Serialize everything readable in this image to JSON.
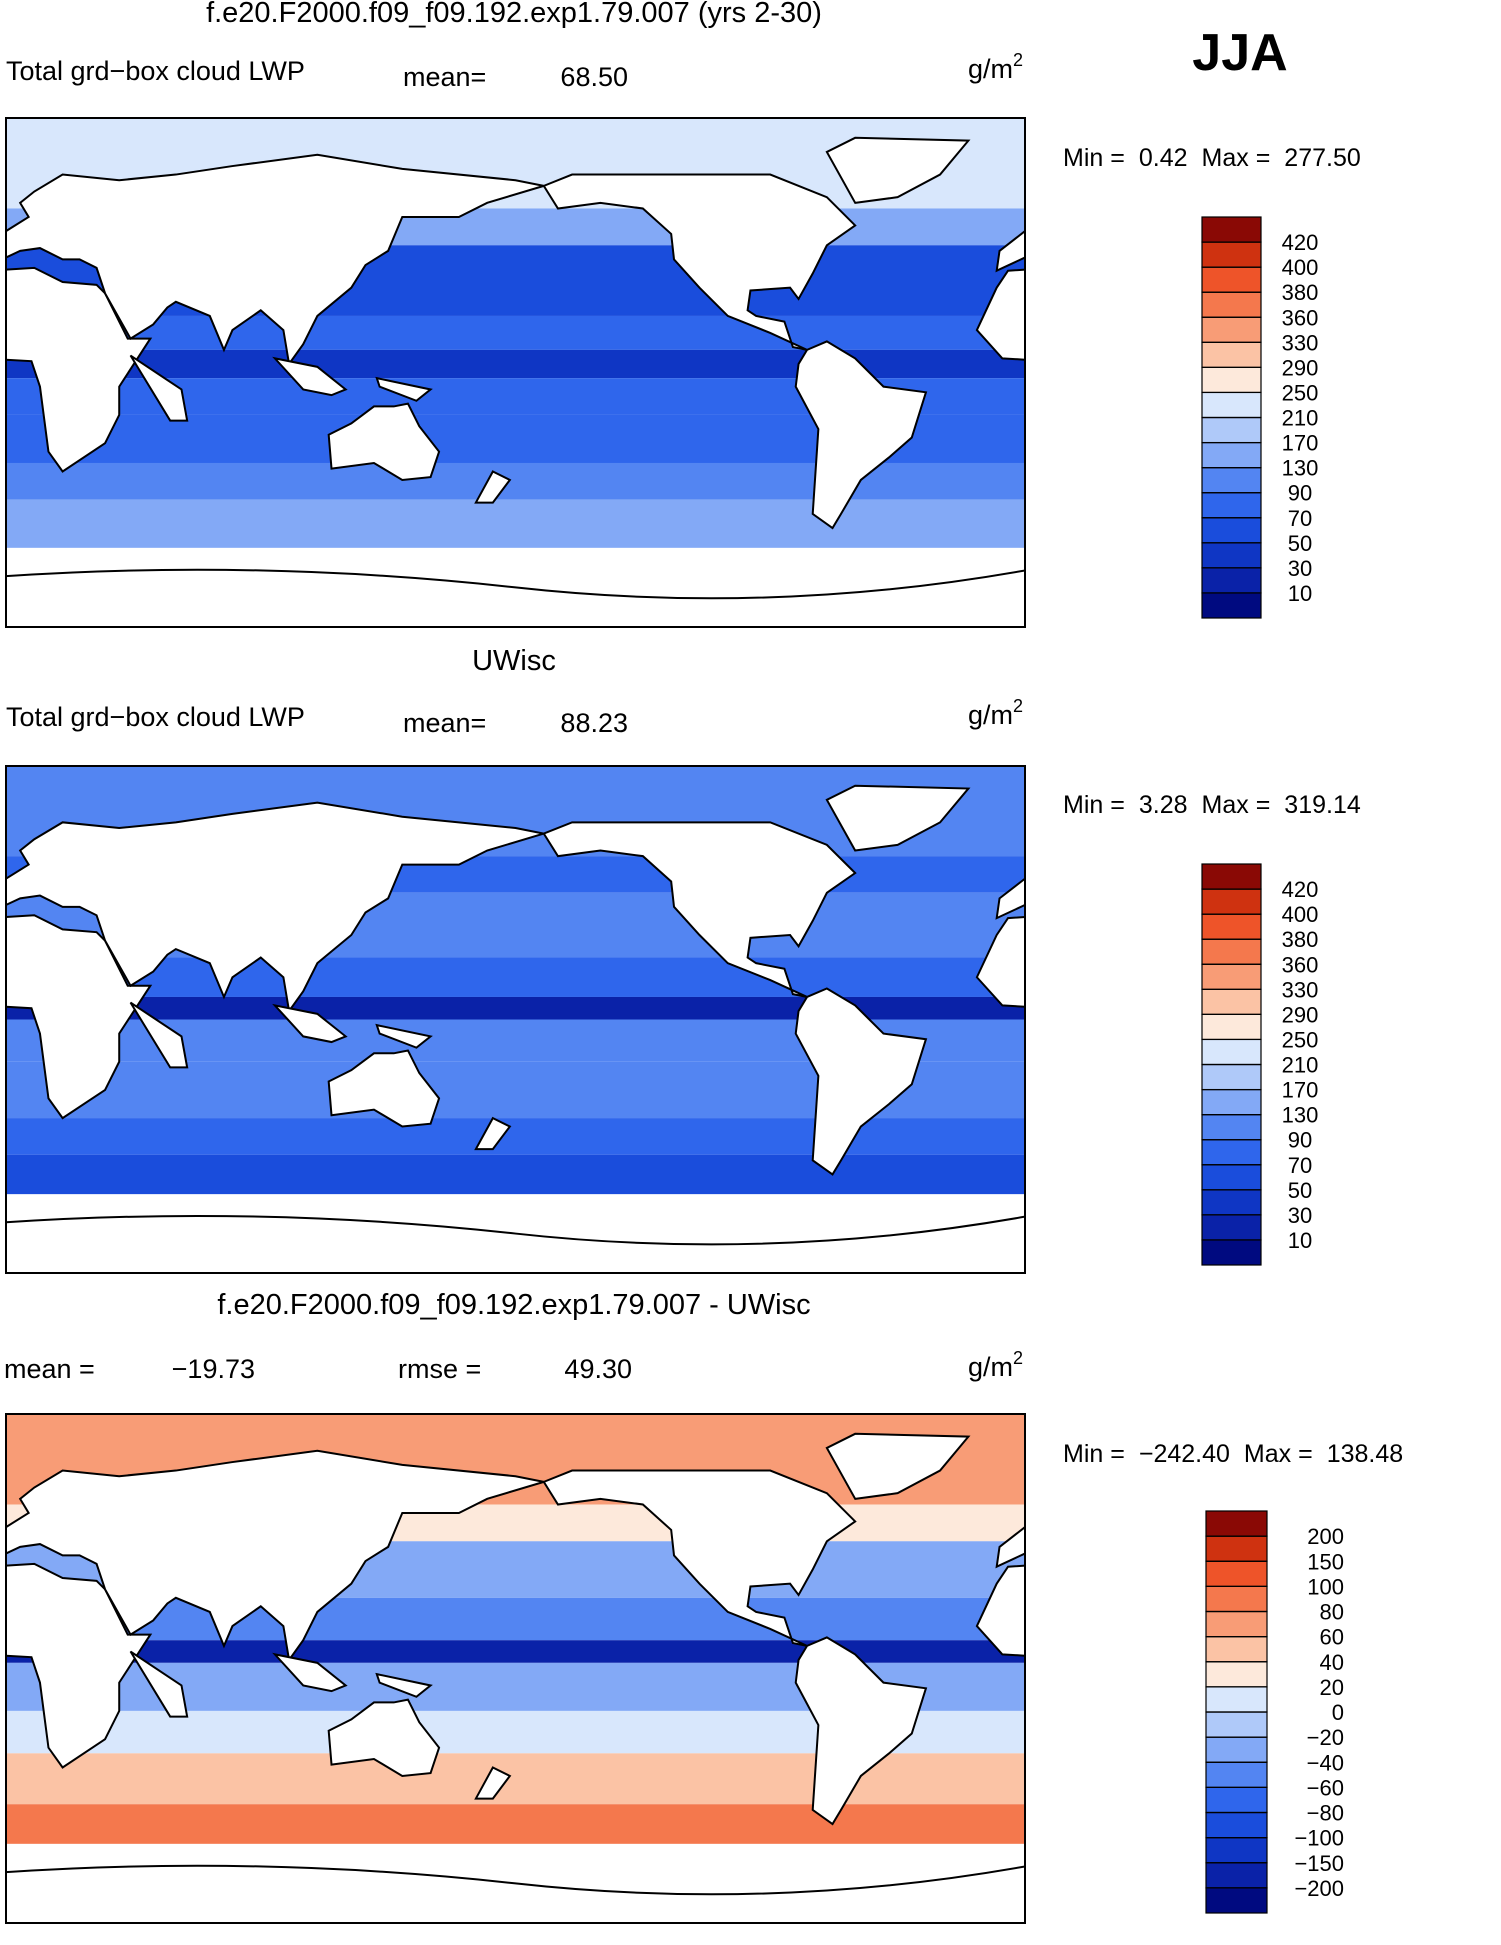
{
  "header": {
    "season": "JJA"
  },
  "panels": [
    {
      "title": "f.e20.F2000.f09_f09.192.exp1.79.007 (yrs 2-30)",
      "variable": "Total grd−box cloud LWP",
      "mean_label": "mean=",
      "mean": "68.50",
      "units": "g/m",
      "units_exp": "2",
      "min_label": "Min =",
      "min": "0.42",
      "max_label": "Max =",
      "max": "277.50",
      "colorbar": {
        "levels": [
          10,
          30,
          50,
          70,
          90,
          130,
          170,
          210,
          250,
          290,
          330,
          360,
          380,
          400,
          420
        ],
        "colors": [
          "#000a80",
          "#0a22a8",
          "#0f36c4",
          "#1a4ddc",
          "#2f66ec",
          "#5385f2",
          "#83a9f6",
          "#afc9f9",
          "#d8e7fc",
          "#fde9db",
          "#fbc3a5",
          "#f89c76",
          "#f4784d",
          "#ee5429",
          "#cf3210",
          "#8a0905"
        ]
      }
    },
    {
      "title": "UWisc",
      "variable": "Total grd−box cloud LWP",
      "mean_label": "mean=",
      "mean": "88.23",
      "units": "g/m",
      "units_exp": "2",
      "min_label": "Min =",
      "min": "3.28",
      "max_label": "Max =",
      "max": "319.14",
      "colorbar": {
        "levels": [
          10,
          30,
          50,
          70,
          90,
          130,
          170,
          210,
          250,
          290,
          330,
          360,
          380,
          400,
          420
        ],
        "colors": [
          "#000a80",
          "#0a22a8",
          "#0f36c4",
          "#1a4ddc",
          "#2f66ec",
          "#5385f2",
          "#83a9f6",
          "#afc9f9",
          "#d8e7fc",
          "#fde9db",
          "#fbc3a5",
          "#f89c76",
          "#f4784d",
          "#ee5429",
          "#cf3210",
          "#8a0905"
        ]
      }
    },
    {
      "title": "f.e20.F2000.f09_f09.192.exp1.79.007 - UWisc",
      "mean_label": "mean =",
      "mean": "−19.73",
      "rmse_label": "rmse =",
      "rmse": "49.30",
      "units": "g/m",
      "units_exp": "2",
      "min_label": "Min =",
      "min": "−242.40",
      "max_label": "Max =",
      "max": "138.48",
      "colorbar": {
        "levels": [
          {
            "value": -200,
            "label": "−200"
          },
          {
            "value": -150,
            "label": "−150"
          },
          {
            "value": -100,
            "label": "−100"
          },
          {
            "value": -80,
            "label": "−80"
          },
          {
            "value": -60,
            "label": "−60"
          },
          {
            "value": -40,
            "label": "−40"
          },
          {
            "value": -20,
            "label": "−20"
          },
          0,
          20,
          40,
          60,
          80,
          100,
          150,
          200
        ],
        "colors": [
          "#000a80",
          "#0a22a8",
          "#0f36c4",
          "#1a4ddc",
          "#2f66ec",
          "#5385f2",
          "#83a9f6",
          "#afc9f9",
          "#d8e7fc",
          "#fde9db",
          "#fbc3a5",
          "#f89c76",
          "#f4784d",
          "#ee5429",
          "#cf3210",
          "#8a0905"
        ]
      }
    }
  ]
}
